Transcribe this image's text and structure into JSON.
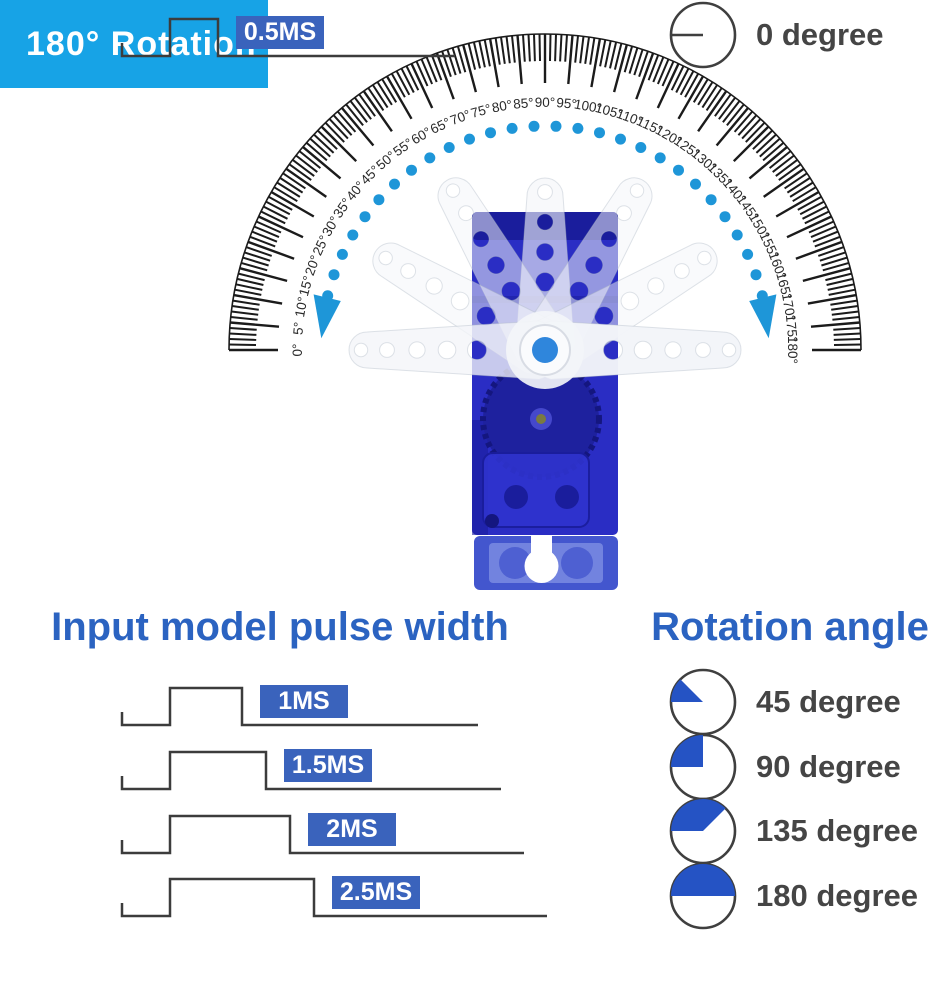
{
  "badge": {
    "label": "180° Rotation",
    "bg": "#17a3e6",
    "fg": "#ffffff"
  },
  "protractor": {
    "labels": [
      "0°",
      "5°",
      "10°",
      "15°",
      "20°",
      "25°",
      "30°",
      "35°",
      "40°",
      "45°",
      "50°",
      "55°",
      "60°",
      "65°",
      "70°",
      "75°",
      "80°",
      "85°",
      "90°",
      "95°",
      "100°",
      "105°",
      "110°",
      "115°",
      "120°",
      "125°",
      "130°",
      "135°",
      "140°",
      "145°",
      "150°",
      "155°",
      "160°",
      "165°",
      "170°",
      "175°",
      "180°"
    ],
    "tick_color": "#1b1b1b",
    "label_color": "#2a2a2a"
  },
  "rotation_arc": {
    "dot_color": "#1e96d8"
  },
  "servo": {
    "body": "#2a2dc4",
    "body_dark": "#1a1d9c",
    "gear": "#1e219e",
    "gear_rim": "#14167f",
    "gear_pin": "#7a7a40",
    "plate": "#2f33ce",
    "flange": "#4356ce",
    "flange_inner": "#8193e4",
    "flange_hole": "#4e60d2",
    "horn": "#f3f5f9",
    "hub_ring": "#fafbfd",
    "hub_center": "#2f86dc"
  },
  "pulse_section": {
    "title": "Input model pulse width",
    "title_color": "#2b63c1",
    "line_color": "#3c3c3c",
    "label_bg": "#3a63bc",
    "label_fg": "#ffffff",
    "rows": [
      {
        "label": "0.5MS",
        "ms": 0.5
      },
      {
        "label": "1MS",
        "ms": 1
      },
      {
        "label": "1.5MS",
        "ms": 1.5
      },
      {
        "label": "2MS",
        "ms": 2
      },
      {
        "label": "2.5MS",
        "ms": 2.5
      }
    ]
  },
  "rotation_section": {
    "title": "Rotation angle",
    "title_color": "#2b63c1",
    "pie_fill": "#2553c4",
    "pie_stroke": "#3f3f3f",
    "label_color": "#454545",
    "rows": [
      {
        "label": "0 degree",
        "angle": 0
      },
      {
        "label": "45 degree",
        "angle": 45
      },
      {
        "label": "90 degree",
        "angle": 90
      },
      {
        "label": "135 degree",
        "angle": 135
      },
      {
        "label": "180 degree",
        "angle": 180
      }
    ]
  }
}
